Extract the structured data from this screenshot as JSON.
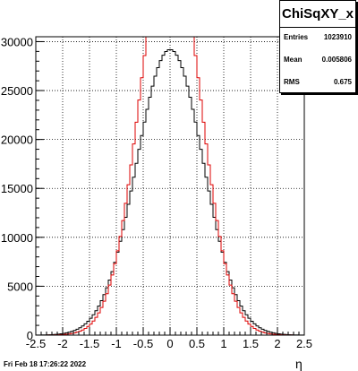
{
  "chart_data": {
    "type": "histogram",
    "title": "",
    "xlabel": "η",
    "ylabel": "",
    "xlim": [
      -2.5,
      2.5
    ],
    "ylim": [
      0,
      30500
    ],
    "grid": true,
    "bin_width": 0.05,
    "x_ticks": [
      -2.5,
      -2,
      -1.5,
      -1,
      -0.5,
      0,
      0.5,
      1,
      1.5,
      2,
      2.5
    ],
    "x_tick_labels": [
      "-2.5",
      "-2",
      "-1.5",
      "-1",
      "-0.5",
      "0",
      "0.5",
      "1",
      "1.5",
      "2",
      "2.5"
    ],
    "y_ticks": [
      0,
      5000,
      10000,
      15000,
      20000,
      25000,
      30000
    ],
    "y_tick_labels": [
      "0",
      "5000",
      "10000",
      "15000",
      "20000",
      "25000",
      "30000"
    ],
    "series": [
      {
        "color": "#000000",
        "shape": {
          "amplitude": 29200,
          "center": 0.0,
          "sigma": 0.62
        }
      },
      {
        "color": "#dd0000",
        "shape": {
          "amplitude": 41500,
          "center": 0.0,
          "sigma": 0.55,
          "clip_at": 30500
        }
      }
    ],
    "stats_box": {
      "title": "ChiSqXY_x",
      "rows": [
        {
          "label": "Entries",
          "value": "1023910"
        },
        {
          "label": "Mean",
          "value": "0.005806"
        },
        {
          "label": "RMS",
          "value": "0.675"
        }
      ]
    }
  },
  "footer": {
    "timestamp": "Fri Feb 18 17:26:22 2022"
  }
}
